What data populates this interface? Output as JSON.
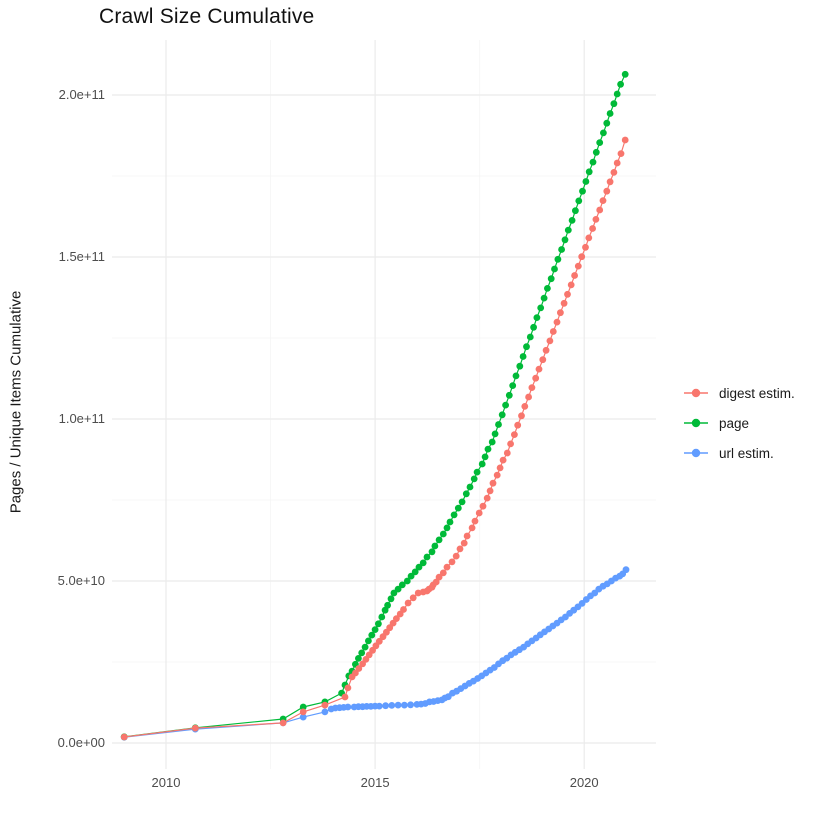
{
  "chart_data": {
    "type": "scatter",
    "title": "Crawl Size Cumulative",
    "xlabel": "",
    "ylabel": "Pages / Unique Items Cumulative",
    "value_unit": "items, values stored in billions (1e9)",
    "grid": "on",
    "legend_position": "right",
    "x_axis": {
      "tick_values": [
        2010,
        2015,
        2020
      ],
      "tick_labels": [
        "2010",
        "2015",
        "2020"
      ],
      "minor_values": [
        2012.5,
        2017.5
      ],
      "range": [
        2008.7,
        2021.7
      ]
    },
    "y_axis": {
      "tick_values": [
        0,
        50,
        100,
        150,
        200
      ],
      "tick_labels": [
        "0.0e+00",
        "5.0e+10",
        "1.0e+11",
        "1.5e+11",
        "2.0e+11"
      ],
      "minor_values": [
        25,
        75,
        125,
        175
      ],
      "range": [
        0,
        217
      ]
    },
    "colors": {
      "grid_major": "#EBEBEB",
      "grid_minor": "#F5F5F5",
      "tick_text": "#4D4D4D",
      "title_text": "#111111",
      "background": "#FFFFFF"
    },
    "draw_order": [
      2,
      1,
      0
    ],
    "series": [
      {
        "name": "digest estim.",
        "color": "#F8766D",
        "points": [
          [
            2009.0,
            1.85
          ],
          [
            2010.7,
            4.6
          ],
          [
            2012.8,
            6.2
          ],
          [
            2013.28,
            9.6
          ],
          [
            2013.8,
            11.7
          ],
          [
            2014.28,
            14.2
          ],
          [
            2014.35,
            17.0
          ],
          [
            2014.45,
            20.4
          ],
          [
            2014.53,
            21.6
          ],
          [
            2014.61,
            23.0
          ],
          [
            2014.7,
            24.4
          ],
          [
            2014.78,
            25.8
          ],
          [
            2014.86,
            27.2
          ],
          [
            2014.94,
            28.6
          ],
          [
            2015.02,
            30.0
          ],
          [
            2015.1,
            31.4
          ],
          [
            2015.19,
            32.8
          ],
          [
            2015.27,
            34.2
          ],
          [
            2015.35,
            35.6
          ],
          [
            2015.43,
            37.0
          ],
          [
            2015.51,
            38.4
          ],
          [
            2015.6,
            39.8
          ],
          [
            2015.68,
            41.2
          ],
          [
            2015.79,
            43.2
          ],
          [
            2015.91,
            44.8
          ],
          [
            2016.03,
            46.3
          ],
          [
            2016.15,
            46.6
          ],
          [
            2016.24,
            46.9
          ],
          [
            2016.29,
            47.5
          ],
          [
            2016.36,
            48.1
          ],
          [
            2016.39,
            48.8
          ],
          [
            2016.46,
            49.7
          ],
          [
            2016.53,
            51.2
          ],
          [
            2016.63,
            52.5
          ],
          [
            2016.72,
            54.3
          ],
          [
            2016.84,
            55.9
          ],
          [
            2016.94,
            57.7
          ],
          [
            2017.03,
            59.9
          ],
          [
            2017.13,
            61.7
          ],
          [
            2017.2,
            63.9
          ],
          [
            2017.32,
            66.4
          ],
          [
            2017.39,
            68.5
          ],
          [
            2017.49,
            71.0
          ],
          [
            2017.58,
            73.1
          ],
          [
            2017.68,
            75.6
          ],
          [
            2017.75,
            77.8
          ],
          [
            2017.82,
            80.2
          ],
          [
            2017.92,
            82.7
          ],
          [
            2017.99,
            84.9
          ],
          [
            2018.06,
            87.3
          ],
          [
            2018.16,
            89.5
          ],
          [
            2018.24,
            92.3
          ],
          [
            2018.33,
            95.2
          ],
          [
            2018.41,
            98.1
          ],
          [
            2018.5,
            101.0
          ],
          [
            2018.58,
            103.9
          ],
          [
            2018.67,
            106.8
          ],
          [
            2018.75,
            109.7
          ],
          [
            2018.84,
            112.6
          ],
          [
            2018.92,
            115.4
          ],
          [
            2019.01,
            118.3
          ],
          [
            2019.09,
            121.2
          ],
          [
            2019.18,
            124.1
          ],
          [
            2019.26,
            127.0
          ],
          [
            2019.35,
            129.9
          ],
          [
            2019.43,
            132.8
          ],
          [
            2019.52,
            135.7
          ],
          [
            2019.6,
            138.5
          ],
          [
            2019.69,
            141.4
          ],
          [
            2019.77,
            144.3
          ],
          [
            2019.86,
            147.2
          ],
          [
            2019.94,
            150.1
          ],
          [
            2020.03,
            153.0
          ],
          [
            2020.11,
            155.9
          ],
          [
            2020.2,
            158.8
          ],
          [
            2020.28,
            161.6
          ],
          [
            2020.37,
            164.5
          ],
          [
            2020.45,
            167.4
          ],
          [
            2020.54,
            170.3
          ],
          [
            2020.62,
            173.2
          ],
          [
            2020.71,
            176.1
          ],
          [
            2020.79,
            179.0
          ],
          [
            2020.88,
            181.9
          ],
          [
            2020.98,
            186.1
          ]
        ]
      },
      {
        "name": "page",
        "color": "#00BA38",
        "points": [
          [
            2009.0,
            1.9
          ],
          [
            2010.7,
            4.7
          ],
          [
            2012.8,
            7.4
          ],
          [
            2013.28,
            11.1
          ],
          [
            2013.8,
            12.7
          ],
          [
            2014.2,
            15.4
          ],
          [
            2014.28,
            17.9
          ],
          [
            2014.37,
            20.7
          ],
          [
            2014.45,
            22.2
          ],
          [
            2014.53,
            24.3
          ],
          [
            2014.6,
            26.1
          ],
          [
            2014.68,
            27.8
          ],
          [
            2014.76,
            29.6
          ],
          [
            2014.84,
            31.5
          ],
          [
            2014.92,
            33.3
          ],
          [
            2015.0,
            35.0
          ],
          [
            2015.08,
            36.8
          ],
          [
            2015.16,
            38.9
          ],
          [
            2015.24,
            41.0
          ],
          [
            2015.3,
            42.5
          ],
          [
            2015.38,
            44.5
          ],
          [
            2015.45,
            46.3
          ],
          [
            2015.55,
            47.5
          ],
          [
            2015.65,
            48.8
          ],
          [
            2015.77,
            50.0
          ],
          [
            2015.86,
            51.5
          ],
          [
            2015.96,
            52.8
          ],
          [
            2016.05,
            54.3
          ],
          [
            2016.15,
            55.6
          ],
          [
            2016.24,
            57.4
          ],
          [
            2016.36,
            59.0
          ],
          [
            2016.43,
            60.8
          ],
          [
            2016.53,
            62.7
          ],
          [
            2016.63,
            64.5
          ],
          [
            2016.72,
            66.4
          ],
          [
            2016.79,
            68.2
          ],
          [
            2016.89,
            70.4
          ],
          [
            2016.99,
            72.5
          ],
          [
            2017.08,
            74.4
          ],
          [
            2017.18,
            76.9
          ],
          [
            2017.27,
            79.0
          ],
          [
            2017.37,
            81.5
          ],
          [
            2017.44,
            83.6
          ],
          [
            2017.56,
            86.1
          ],
          [
            2017.63,
            88.3
          ],
          [
            2017.7,
            90.7
          ],
          [
            2017.8,
            92.9
          ],
          [
            2017.87,
            95.4
          ],
          [
            2017.95,
            98.3
          ],
          [
            2018.04,
            101.3
          ],
          [
            2018.12,
            104.3
          ],
          [
            2018.21,
            107.3
          ],
          [
            2018.29,
            110.3
          ],
          [
            2018.37,
            113.3
          ],
          [
            2018.46,
            116.3
          ],
          [
            2018.54,
            119.3
          ],
          [
            2018.62,
            122.3
          ],
          [
            2018.71,
            125.3
          ],
          [
            2018.79,
            128.3
          ],
          [
            2018.87,
            131.3
          ],
          [
            2018.96,
            134.3
          ],
          [
            2019.04,
            137.3
          ],
          [
            2019.12,
            140.3
          ],
          [
            2019.21,
            143.3
          ],
          [
            2019.29,
            146.3
          ],
          [
            2019.37,
            149.3
          ],
          [
            2019.46,
            152.3
          ],
          [
            2019.54,
            155.3
          ],
          [
            2019.62,
            158.3
          ],
          [
            2019.71,
            161.3
          ],
          [
            2019.79,
            164.3
          ],
          [
            2019.87,
            167.3
          ],
          [
            2019.96,
            170.3
          ],
          [
            2020.04,
            173.3
          ],
          [
            2020.12,
            176.3
          ],
          [
            2020.21,
            179.3
          ],
          [
            2020.29,
            182.3
          ],
          [
            2020.37,
            185.3
          ],
          [
            2020.46,
            188.3
          ],
          [
            2020.54,
            191.3
          ],
          [
            2020.62,
            194.3
          ],
          [
            2020.71,
            197.3
          ],
          [
            2020.79,
            200.3
          ],
          [
            2020.87,
            203.3
          ],
          [
            2020.98,
            206.4
          ]
        ]
      },
      {
        "name": "url estim.",
        "color": "#619CFF",
        "points": [
          [
            2009.0,
            1.8
          ],
          [
            2010.7,
            4.3
          ],
          [
            2012.8,
            6.2
          ],
          [
            2013.28,
            8.0
          ],
          [
            2013.8,
            9.6
          ],
          [
            2013.95,
            10.5
          ],
          [
            2014.05,
            10.8
          ],
          [
            2014.15,
            10.9
          ],
          [
            2014.25,
            11.0
          ],
          [
            2014.35,
            11.1
          ],
          [
            2014.5,
            11.1
          ],
          [
            2014.6,
            11.2
          ],
          [
            2014.7,
            11.2
          ],
          [
            2014.8,
            11.3
          ],
          [
            2014.9,
            11.3
          ],
          [
            2015.0,
            11.4
          ],
          [
            2015.1,
            11.4
          ],
          [
            2015.25,
            11.5
          ],
          [
            2015.4,
            11.6
          ],
          [
            2015.55,
            11.7
          ],
          [
            2015.7,
            11.7
          ],
          [
            2015.85,
            11.8
          ],
          [
            2016.0,
            11.9
          ],
          [
            2016.1,
            12.0
          ],
          [
            2016.2,
            12.2
          ],
          [
            2016.3,
            12.7
          ],
          [
            2016.4,
            12.8
          ],
          [
            2016.5,
            13.1
          ],
          [
            2016.6,
            13.3
          ],
          [
            2016.67,
            13.9
          ],
          [
            2016.75,
            14.3
          ],
          [
            2016.85,
            15.4
          ],
          [
            2016.95,
            16.0
          ],
          [
            2017.05,
            16.8
          ],
          [
            2017.15,
            17.6
          ],
          [
            2017.25,
            18.4
          ],
          [
            2017.35,
            19.1
          ],
          [
            2017.45,
            19.9
          ],
          [
            2017.55,
            20.7
          ],
          [
            2017.65,
            21.6
          ],
          [
            2017.75,
            22.5
          ],
          [
            2017.85,
            23.3
          ],
          [
            2017.95,
            24.4
          ],
          [
            2018.05,
            25.4
          ],
          [
            2018.15,
            26.2
          ],
          [
            2018.25,
            27.2
          ],
          [
            2018.35,
            28.0
          ],
          [
            2018.45,
            28.8
          ],
          [
            2018.55,
            29.6
          ],
          [
            2018.65,
            30.6
          ],
          [
            2018.75,
            31.5
          ],
          [
            2018.85,
            32.4
          ],
          [
            2018.95,
            33.4
          ],
          [
            2019.05,
            34.3
          ],
          [
            2019.15,
            35.2
          ],
          [
            2019.25,
            36.1
          ],
          [
            2019.35,
            37.0
          ],
          [
            2019.45,
            38.0
          ],
          [
            2019.55,
            38.9
          ],
          [
            2019.65,
            40.0
          ],
          [
            2019.75,
            41.0
          ],
          [
            2019.85,
            42.0
          ],
          [
            2019.95,
            43.1
          ],
          [
            2020.05,
            44.3
          ],
          [
            2020.15,
            45.4
          ],
          [
            2020.25,
            46.3
          ],
          [
            2020.35,
            47.5
          ],
          [
            2020.45,
            48.4
          ],
          [
            2020.55,
            49.1
          ],
          [
            2020.65,
            50.0
          ],
          [
            2020.75,
            50.9
          ],
          [
            2020.85,
            51.5
          ],
          [
            2020.92,
            52.2
          ],
          [
            2021.0,
            53.5
          ]
        ]
      }
    ]
  }
}
